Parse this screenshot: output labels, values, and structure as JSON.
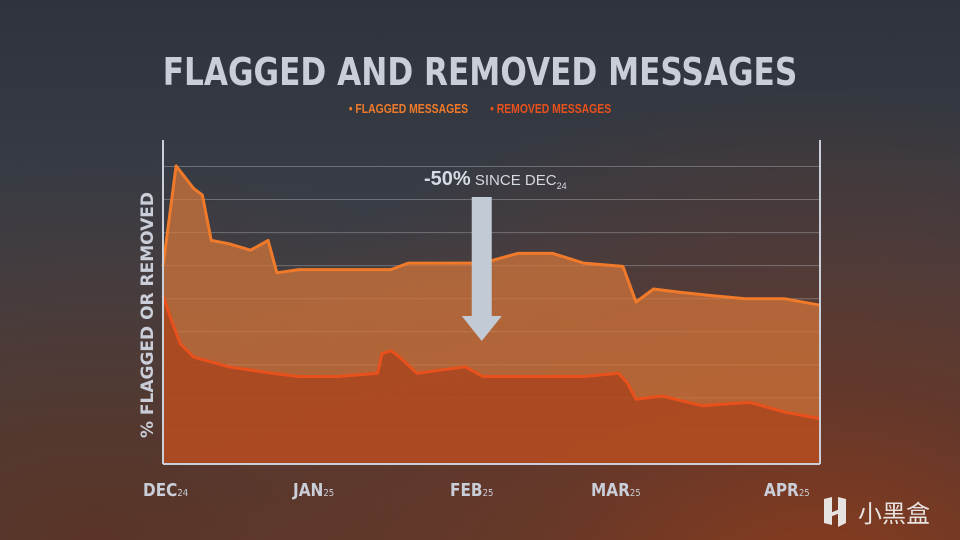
{
  "chart_data": {
    "type": "area",
    "title": "FLAGGED AND REMOVED MESSAGES",
    "ylabel": "% FLAGGED OR REMOVED",
    "xlabel": "",
    "ylim": [
      0,
      100
    ],
    "xlim": [
      "2024-12-01",
      "2025-04-30"
    ],
    "grid": true,
    "legend_position": "top-center",
    "x_ticks": [
      {
        "month": "DEC",
        "year": "24"
      },
      {
        "month": "JAN",
        "year": "25"
      },
      {
        "month": "FEB",
        "year": "25"
      },
      {
        "month": "MAR",
        "year": "25"
      },
      {
        "month": "APR",
        "year": "25"
      }
    ],
    "series": [
      {
        "name": "FLAGGED MESSAGES",
        "color": "#f07a2a",
        "fill": "#d8773a",
        "x": [
          "2024-12-01",
          "2024-12-04",
          "2024-12-08",
          "2024-12-10",
          "2024-12-12",
          "2024-12-16",
          "2024-12-21",
          "2024-12-25",
          "2024-12-27",
          "2025-01-01",
          "2025-01-08",
          "2025-01-15",
          "2025-01-22",
          "2025-01-26",
          "2025-02-03",
          "2025-02-12",
          "2025-02-20",
          "2025-02-28",
          "2025-03-07",
          "2025-03-16",
          "2025-03-19",
          "2025-03-23",
          "2025-03-29",
          "2025-04-05",
          "2025-04-13",
          "2025-04-22",
          "2025-04-30"
        ],
        "values": [
          61,
          92,
          85,
          83,
          69,
          68,
          66,
          69,
          59,
          60,
          60,
          60,
          60,
          62,
          62,
          62,
          65,
          65,
          62,
          61,
          50,
          54,
          53,
          52,
          51,
          51,
          49
        ]
      },
      {
        "name": "REMOVED MESSAGES",
        "color": "#e8501c",
        "fill": "#a8421c",
        "x": [
          "2024-12-01",
          "2024-12-03",
          "2024-12-05",
          "2024-12-08",
          "2024-12-16",
          "2024-12-26",
          "2025-01-01",
          "2025-01-10",
          "2025-01-19",
          "2025-01-20",
          "2025-01-22",
          "2025-01-24",
          "2025-01-28",
          "2025-02-08",
          "2025-02-12",
          "2025-02-21",
          "2025-03-07",
          "2025-03-15",
          "2025-03-17",
          "2025-03-19",
          "2025-03-25",
          "2025-04-03",
          "2025-04-14",
          "2025-04-22",
          "2025-04-26",
          "2025-04-30"
        ],
        "values": [
          52,
          44,
          37,
          33,
          30,
          28,
          27,
          27,
          28,
          34,
          35,
          33,
          28,
          30,
          27,
          27,
          27,
          28,
          25,
          20,
          21,
          18,
          19,
          16,
          15,
          14
        ]
      }
    ],
    "annotation": {
      "value": "-50%",
      "text": "SINCE DEC",
      "sub": "24",
      "arrow_at": "2025-02-12"
    }
  },
  "watermark": {
    "text": "小黑盒"
  }
}
